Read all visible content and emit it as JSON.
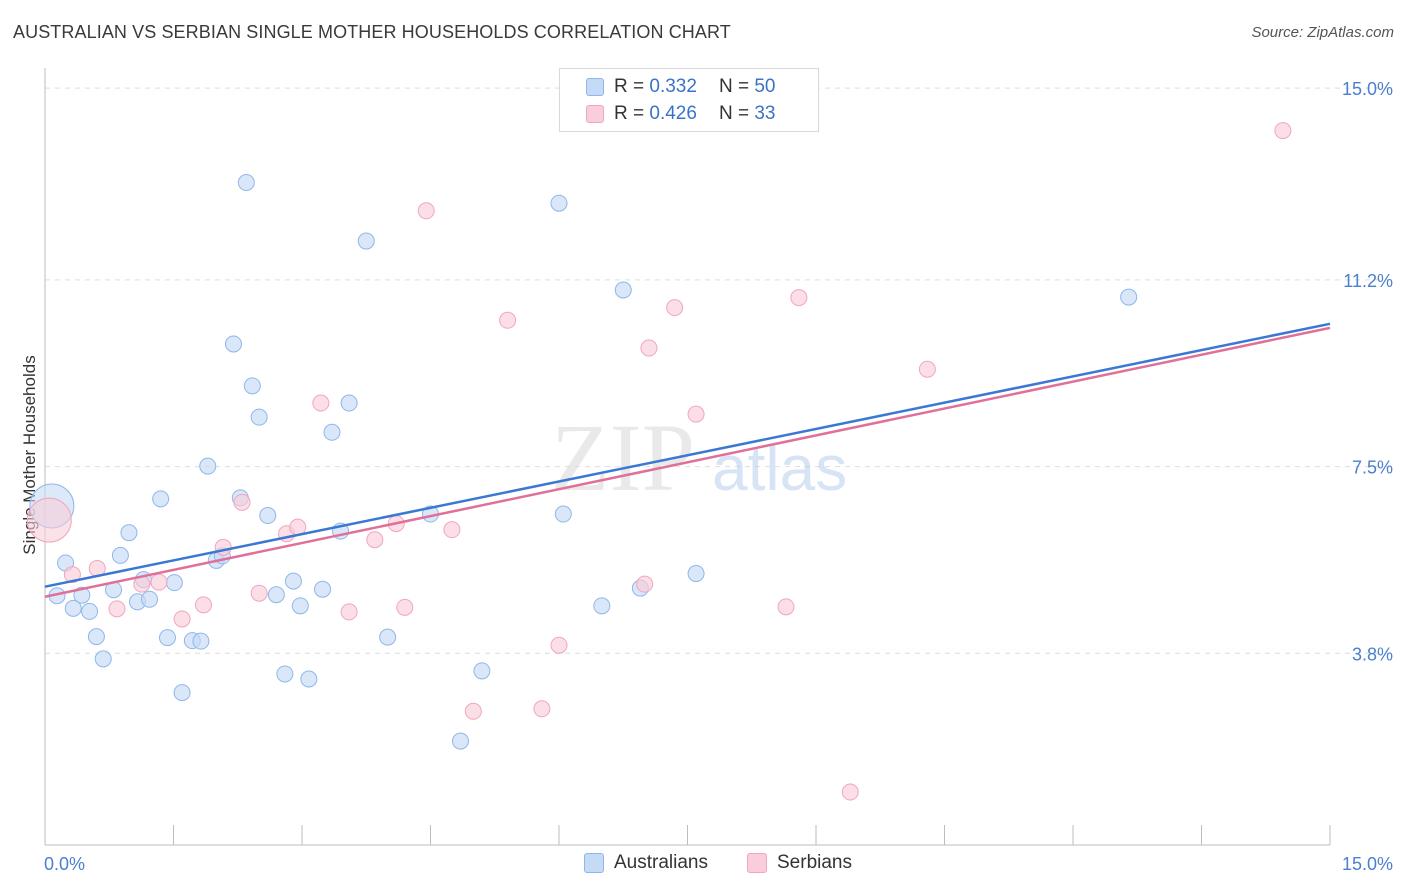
{
  "chart_data": {
    "type": "scatter",
    "title": "AUSTRALIAN VS SERBIAN SINGLE MOTHER HOUSEHOLDS CORRELATION CHART",
    "source": "Source: ZipAtlas.com",
    "ylabel": "Single Mother Households",
    "xlim": [
      0,
      15
    ],
    "ylim": [
      0,
      15.4
    ],
    "x_tick_labels": [
      "0.0%",
      "15.0%"
    ],
    "y_ticks": [
      3.8,
      7.5,
      11.2,
      15.0
    ],
    "y_tick_labels": [
      "3.8%",
      "7.5%",
      "11.2%",
      "15.0%"
    ],
    "watermark": {
      "part1": "ZIP",
      "part2": "atlas"
    },
    "legend": {
      "r_label": "R =",
      "n_label": "N =",
      "rows": [
        {
          "r": "0.332",
          "n": "50"
        },
        {
          "r": "0.426",
          "n": "33"
        }
      ]
    },
    "series": [
      {
        "name": "Australians",
        "color": "#8fb7ea",
        "fill": "#c5daf5",
        "line_color": "#3a78d4",
        "trend": [
          [
            0,
            5.12
          ],
          [
            15,
            10.33
          ]
        ],
        "points": [
          [
            0.08,
            6.72
          ],
          [
            0.14,
            4.94
          ],
          [
            0.24,
            5.59
          ],
          [
            0.33,
            4.69
          ],
          [
            0.43,
            4.95
          ],
          [
            0.52,
            4.63
          ],
          [
            0.6,
            4.13
          ],
          [
            0.68,
            3.69
          ],
          [
            0.8,
            5.06
          ],
          [
            0.88,
            5.74
          ],
          [
            0.98,
            6.19
          ],
          [
            1.08,
            4.82
          ],
          [
            1.15,
            5.26
          ],
          [
            1.22,
            4.87
          ],
          [
            1.35,
            6.86
          ],
          [
            1.43,
            4.11
          ],
          [
            1.51,
            5.2
          ],
          [
            1.6,
            3.02
          ],
          [
            1.72,
            4.05
          ],
          [
            1.82,
            4.04
          ],
          [
            1.9,
            7.51
          ],
          [
            2.0,
            5.64
          ],
          [
            2.07,
            5.73
          ],
          [
            2.2,
            9.93
          ],
          [
            2.28,
            6.88
          ],
          [
            2.35,
            13.13
          ],
          [
            2.42,
            9.1
          ],
          [
            2.5,
            8.48
          ],
          [
            2.6,
            6.53
          ],
          [
            2.7,
            4.96
          ],
          [
            2.8,
            3.39
          ],
          [
            2.9,
            5.23
          ],
          [
            2.98,
            4.74
          ],
          [
            3.08,
            3.29
          ],
          [
            3.24,
            5.07
          ],
          [
            3.35,
            8.18
          ],
          [
            3.45,
            6.22
          ],
          [
            3.55,
            8.76
          ],
          [
            3.75,
            11.97
          ],
          [
            4.0,
            4.12
          ],
          [
            4.5,
            6.56
          ],
          [
            4.85,
            2.06
          ],
          [
            5.1,
            3.45
          ],
          [
            6.0,
            12.72
          ],
          [
            6.05,
            6.56
          ],
          [
            6.5,
            4.74
          ],
          [
            6.75,
            11.0
          ],
          [
            6.95,
            5.09
          ],
          [
            7.6,
            5.38
          ],
          [
            12.65,
            10.86
          ]
        ]
      },
      {
        "name": "Serbians",
        "color": "#f0a6bf",
        "fill": "#f9cdd9",
        "line_color": "#e0709a",
        "trend": [
          [
            0,
            4.92
          ],
          [
            15,
            10.25
          ]
        ],
        "points": [
          [
            0.05,
            6.44
          ],
          [
            0.32,
            5.36
          ],
          [
            0.61,
            5.48
          ],
          [
            0.84,
            4.68
          ],
          [
            1.13,
            5.17
          ],
          [
            1.33,
            5.21
          ],
          [
            1.6,
            4.48
          ],
          [
            1.85,
            4.76
          ],
          [
            2.08,
            5.9
          ],
          [
            2.3,
            6.79
          ],
          [
            2.5,
            4.99
          ],
          [
            2.82,
            6.17
          ],
          [
            2.95,
            6.3
          ],
          [
            3.22,
            8.76
          ],
          [
            3.55,
            4.62
          ],
          [
            3.85,
            6.05
          ],
          [
            4.1,
            6.37
          ],
          [
            4.2,
            4.71
          ],
          [
            4.45,
            12.57
          ],
          [
            4.75,
            6.25
          ],
          [
            5.0,
            2.65
          ],
          [
            5.4,
            10.4
          ],
          [
            5.8,
            2.7
          ],
          [
            6.0,
            3.96
          ],
          [
            7.0,
            5.17
          ],
          [
            7.05,
            9.85
          ],
          [
            7.35,
            10.65
          ],
          [
            7.6,
            8.54
          ],
          [
            8.65,
            4.72
          ],
          [
            8.8,
            10.85
          ],
          [
            9.4,
            1.05
          ],
          [
            10.3,
            9.43
          ],
          [
            14.45,
            14.16
          ]
        ]
      }
    ]
  }
}
